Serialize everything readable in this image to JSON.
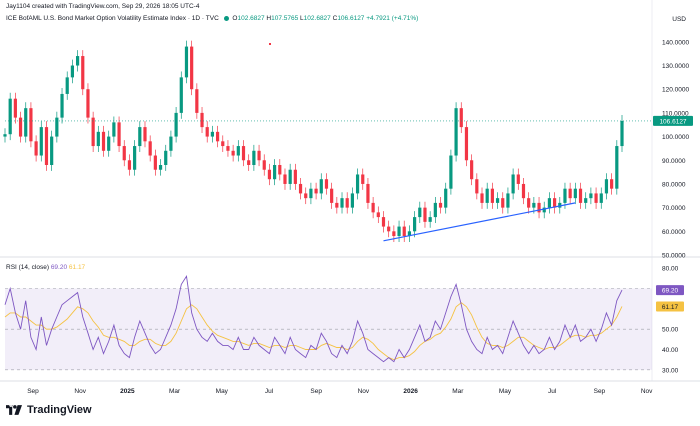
{
  "header": {
    "credit": "Jay1104 created with TradingView.com, Sep 29, 2026 18:05 UTC-4"
  },
  "symbol": {
    "name": "ICE BofAML U.S. Bond Market Option Volatility Estimate Index · 1D · TVC",
    "o_label": "O",
    "o": "102.6827",
    "h_label": "H",
    "h": "107.5765",
    "l_label": "L",
    "l": "102.6827",
    "c_label": "C",
    "c": "106.6127",
    "change": "+4.7921 (+4.71%)"
  },
  "currency": "USD",
  "price_badge": "106.6127",
  "rsi": {
    "label": "RSI (14, close)",
    "value": "69.20",
    "ma": "61.17",
    "badge_value": "69.20",
    "badge_ma": "61.17"
  },
  "brand": "TradingView",
  "colors": {
    "up": "#089981",
    "down": "#f23645",
    "rsi": "#7e57c2",
    "rsi_ma": "#f5c242",
    "trendline": "#2962ff",
    "badge": "#089981"
  },
  "chart_data": [
    {
      "type": "line",
      "note_type": "candlestick",
      "x_tick_labels": [
        "Sep",
        "Nov",
        "2025",
        "Mar",
        "May",
        "Jul",
        "Sep",
        "Nov",
        "2026",
        "Mar",
        "May",
        "Jul",
        "Sep",
        "Nov"
      ],
      "y_tick_labels": [
        "140.0000",
        "130.0000",
        "120.0000",
        "110.0000",
        "100.0000",
        "90.0000",
        "80.0000",
        "70.0000",
        "60.0000",
        "50.0000"
      ],
      "ylim": [
        50,
        145
      ],
      "series": [
        {
          "values": [
            101,
            116,
            108,
            100,
            112,
            98,
            92,
            104,
            88,
            100,
            108,
            118,
            125,
            130,
            134,
            120,
            108,
            96,
            102,
            94,
            100,
            106,
            96,
            90,
            86,
            96,
            104,
            98,
            92,
            86,
            88,
            94,
            100,
            110,
            125,
            138,
            120,
            110,
            104,
            100,
            102,
            98,
            96,
            94,
            92,
            96,
            90,
            88,
            94,
            90,
            86,
            82,
            88,
            84,
            80,
            86,
            80,
            76,
            74,
            78,
            76,
            82,
            78,
            72,
            70,
            74,
            70,
            76,
            84,
            80,
            72,
            68,
            66,
            62,
            60,
            58,
            62,
            58,
            60,
            66,
            70,
            64,
            66,
            72,
            70,
            78,
            92,
            112,
            104,
            90,
            82,
            76,
            72,
            78,
            72,
            74,
            70,
            76,
            84,
            80,
            74,
            70,
            72,
            68,
            70,
            74,
            70,
            72,
            78,
            74,
            78,
            72,
            74,
            76,
            72,
            76,
            82,
            78,
            96,
            106.6
          ],
          "up_color": "#089981",
          "down_color": "#f23645"
        }
      ],
      "last_value": 106.6127,
      "trendline": {
        "from": [
          "Dec 2025",
          56
        ],
        "to": [
          "Jun 2026",
          72
        ]
      }
    },
    {
      "type": "line",
      "y_tick_labels": [
        "80.00",
        "70.00",
        "60.00",
        "50.00",
        "40.00",
        "30.00"
      ],
      "ylim": [
        25,
        85
      ],
      "bands": [
        30,
        70
      ],
      "series": [
        {
          "values": [
            62,
            70,
            58,
            50,
            64,
            46,
            40,
            56,
            42,
            50,
            56,
            62,
            64,
            66,
            68,
            56,
            48,
            40,
            46,
            38,
            44,
            52,
            42,
            38,
            36,
            46,
            54,
            48,
            42,
            38,
            40,
            46,
            52,
            60,
            72,
            76,
            58,
            50,
            46,
            44,
            48,
            44,
            42,
            42,
            40,
            46,
            40,
            40,
            46,
            42,
            40,
            38,
            46,
            42,
            38,
            46,
            40,
            38,
            36,
            42,
            40,
            48,
            44,
            38,
            36,
            42,
            38,
            44,
            54,
            48,
            40,
            38,
            36,
            34,
            36,
            34,
            40,
            36,
            40,
            46,
            52,
            44,
            46,
            54,
            50,
            58,
            66,
            72,
            62,
            50,
            44,
            40,
            38,
            46,
            40,
            42,
            38,
            46,
            54,
            48,
            42,
            38,
            42,
            38,
            40,
            46,
            40,
            44,
            52,
            46,
            52,
            44,
            46,
            50,
            44,
            50,
            58,
            52,
            64,
            69.2
          ],
          "color": "#7e57c2"
        },
        {
          "values": [
            56,
            58,
            58,
            56,
            56,
            54,
            52,
            52,
            50,
            50,
            51,
            53,
            55,
            58,
            61,
            60,
            58,
            54,
            51,
            47,
            46,
            46,
            45,
            44,
            42,
            42,
            44,
            45,
            45,
            43,
            42,
            42,
            44,
            48,
            54,
            60,
            62,
            60,
            56,
            52,
            49,
            47,
            46,
            45,
            44,
            44,
            43,
            42,
            43,
            43,
            42,
            41,
            42,
            42,
            41,
            42,
            42,
            41,
            40,
            40,
            40,
            42,
            43,
            42,
            41,
            41,
            40,
            41,
            44,
            46,
            45,
            43,
            40,
            38,
            36,
            35,
            36,
            36,
            37,
            39,
            42,
            44,
            45,
            47,
            48,
            51,
            55,
            61,
            63,
            61,
            57,
            51,
            46,
            43,
            42,
            42,
            41,
            42,
            44,
            46,
            46,
            44,
            42,
            41,
            40,
            41,
            41,
            42,
            44,
            46,
            47,
            47,
            46,
            47,
            47,
            48,
            50,
            52,
            56,
            61.2
          ],
          "color": "#f5c242"
        }
      ]
    }
  ]
}
